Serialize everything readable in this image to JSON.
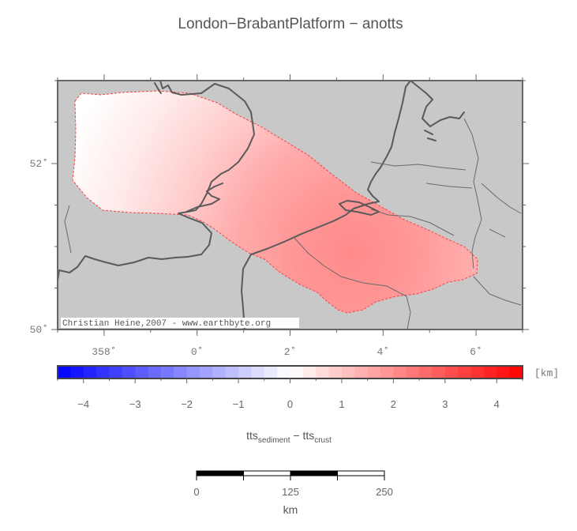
{
  "title": "London−BrabantPlatform − anotts",
  "map": {
    "x_ticks": [
      {
        "label": "358˚",
        "lon": 358
      },
      {
        "label": "0˚",
        "lon": 0
      },
      {
        "label": "2˚",
        "lon": 2
      },
      {
        "label": "4˚",
        "lon": 4
      },
      {
        "label": "6˚",
        "lon": 6
      }
    ],
    "y_ticks": [
      {
        "label": "52˚",
        "lat": 52
      },
      {
        "label": "50˚",
        "lat": 50
      }
    ],
    "lon_range": [
      -3,
      7
    ],
    "lat_range": [
      50,
      53
    ],
    "background_color": "#c8c8c8",
    "credit": "Christian Heine,2007 - www.earthbyte.org"
  },
  "colorbar": {
    "range": [
      -4.5,
      4.5
    ],
    "ticks": [
      -4,
      -3,
      -2,
      -1,
      0,
      1,
      2,
      3,
      4
    ],
    "tick_labels": [
      "−4",
      "−3",
      "−2",
      "−1",
      "0",
      "1",
      "2",
      "3",
      "4"
    ],
    "unit": "[km]",
    "colors": {
      "negative": "#0000ff",
      "zero": "#ffffff",
      "positive": "#ff0000"
    }
  },
  "axis_label": {
    "part1": "tts",
    "sub1": "sediment",
    "sep": " − ",
    "part2": "tts",
    "sub2": "crust"
  },
  "scalebar": {
    "ticks": [
      "0",
      "125",
      "250"
    ],
    "unit": "km",
    "segments": 4
  }
}
